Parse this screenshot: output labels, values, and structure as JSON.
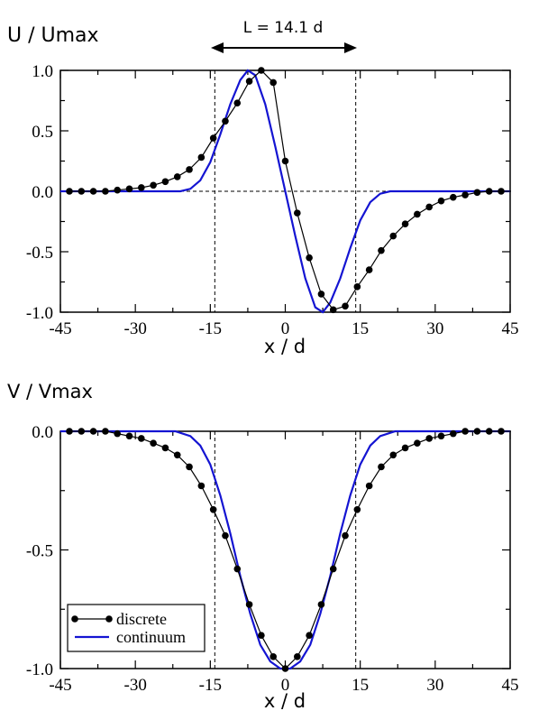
{
  "chart_data": [
    {
      "type": "line",
      "ylabel": "U / Umax",
      "xlabel": "x / d",
      "annotation": "L = 14.1 d",
      "xlim": [
        -45,
        45
      ],
      "ylim": [
        -1.0,
        1.0
      ],
      "xticks": [
        "-45",
        "-30",
        "-15",
        "0",
        "15",
        "30",
        "45"
      ],
      "yticks": [
        "1.0",
        "0.5",
        "0.0",
        "-0.5",
        "-1.0"
      ],
      "grid": false,
      "reference_lines": {
        "vertical_x": [
          -14.1,
          14.1
        ],
        "horizontal_y": [
          0
        ]
      },
      "series": [
        {
          "name": "discrete",
          "color": "#000000",
          "marker": "circle",
          "x": [
            -43.2,
            -40.8,
            -38.4,
            -36.0,
            -33.6,
            -31.2,
            -28.8,
            -26.4,
            -24.0,
            -21.6,
            -19.2,
            -16.8,
            -14.4,
            -12.0,
            -9.6,
            -7.2,
            -4.8,
            -2.4,
            0.0,
            2.4,
            4.8,
            7.2,
            9.6,
            12.0,
            14.4,
            16.8,
            19.2,
            21.6,
            24.0,
            26.4,
            28.8,
            31.2,
            33.6,
            36.0,
            38.4,
            40.8,
            43.2,
            45.6
          ],
          "y": [
            0.0,
            0.0,
            0.0,
            0.0,
            0.01,
            0.02,
            0.03,
            0.05,
            0.08,
            0.12,
            0.18,
            0.28,
            0.44,
            0.58,
            0.73,
            0.91,
            1.0,
            0.9,
            0.25,
            -0.18,
            -0.55,
            -0.85,
            -0.98,
            -0.95,
            -0.79,
            -0.65,
            -0.49,
            -0.37,
            -0.27,
            -0.19,
            -0.13,
            -0.08,
            -0.05,
            -0.03,
            -0.01,
            0.0,
            0.0,
            0.0
          ]
        },
        {
          "name": "continuum",
          "color": "#1414d2",
          "marker": "none",
          "x": [
            -45,
            -21,
            -19,
            -17,
            -15,
            -13,
            -11,
            -9,
            -7.5,
            -6,
            -4,
            -2,
            0,
            2,
            4,
            6,
            7.5,
            9,
            11,
            13,
            15,
            17,
            19,
            21,
            45
          ],
          "y": [
            0.0,
            0.0,
            0.02,
            0.09,
            0.24,
            0.47,
            0.72,
            0.92,
            1.0,
            0.96,
            0.72,
            0.37,
            0.0,
            -0.37,
            -0.72,
            -0.96,
            -1.0,
            -0.92,
            -0.72,
            -0.47,
            -0.24,
            -0.09,
            -0.02,
            0.0,
            0.0
          ]
        }
      ]
    },
    {
      "type": "line",
      "ylabel": "V / Vmax",
      "xlabel": "x / d",
      "xlim": [
        -45,
        45
      ],
      "ylim": [
        -1.0,
        0.0
      ],
      "xticks": [
        "-45",
        "-30",
        "-15",
        "0",
        "15",
        "30",
        "45"
      ],
      "yticks": [
        "0.0",
        "-0.5",
        "-1.0"
      ],
      "grid": false,
      "legend": "bottom-left",
      "reference_lines": {
        "vertical_x": [
          -14.1,
          14.1
        ],
        "horizontal_y": []
      },
      "series": [
        {
          "name": "discrete",
          "color": "#000000",
          "marker": "circle",
          "x": [
            -43.2,
            -40.8,
            -38.4,
            -36.0,
            -33.6,
            -31.2,
            -28.8,
            -26.4,
            -24.0,
            -21.6,
            -19.2,
            -16.8,
            -14.4,
            -12.0,
            -9.6,
            -7.2,
            -4.8,
            -2.4,
            0.0,
            2.4,
            4.8,
            7.2,
            9.6,
            12.0,
            14.4,
            16.8,
            19.2,
            21.6,
            24.0,
            26.4,
            28.8,
            31.2,
            33.6,
            36.0,
            38.4,
            40.8,
            43.2,
            45.6
          ],
          "y": [
            0.0,
            0.0,
            0.0,
            0.0,
            -0.01,
            -0.02,
            -0.03,
            -0.05,
            -0.07,
            -0.1,
            -0.15,
            -0.23,
            -0.33,
            -0.44,
            -0.58,
            -0.73,
            -0.86,
            -0.95,
            -1.0,
            -0.95,
            -0.86,
            -0.73,
            -0.58,
            -0.44,
            -0.33,
            -0.23,
            -0.15,
            -0.1,
            -0.07,
            -0.05,
            -0.03,
            -0.02,
            -0.01,
            0.0,
            0.0,
            0.0,
            0.0,
            0.0
          ]
        },
        {
          "name": "continuum",
          "color": "#1414d2",
          "marker": "none",
          "x": [
            -45,
            -22,
            -19,
            -17,
            -15,
            -13,
            -11,
            -9,
            -7,
            -5,
            -3,
            -1,
            0,
            1,
            3,
            5,
            7,
            9,
            11,
            13,
            15,
            17,
            19,
            22,
            45
          ],
          "y": [
            0.0,
            0.0,
            -0.02,
            -0.06,
            -0.14,
            -0.27,
            -0.43,
            -0.61,
            -0.77,
            -0.9,
            -0.97,
            -1.0,
            -1.0,
            -1.0,
            -0.97,
            -0.9,
            -0.77,
            -0.61,
            -0.43,
            -0.27,
            -0.14,
            -0.06,
            -0.02,
            0.0,
            0.0
          ]
        }
      ]
    }
  ]
}
